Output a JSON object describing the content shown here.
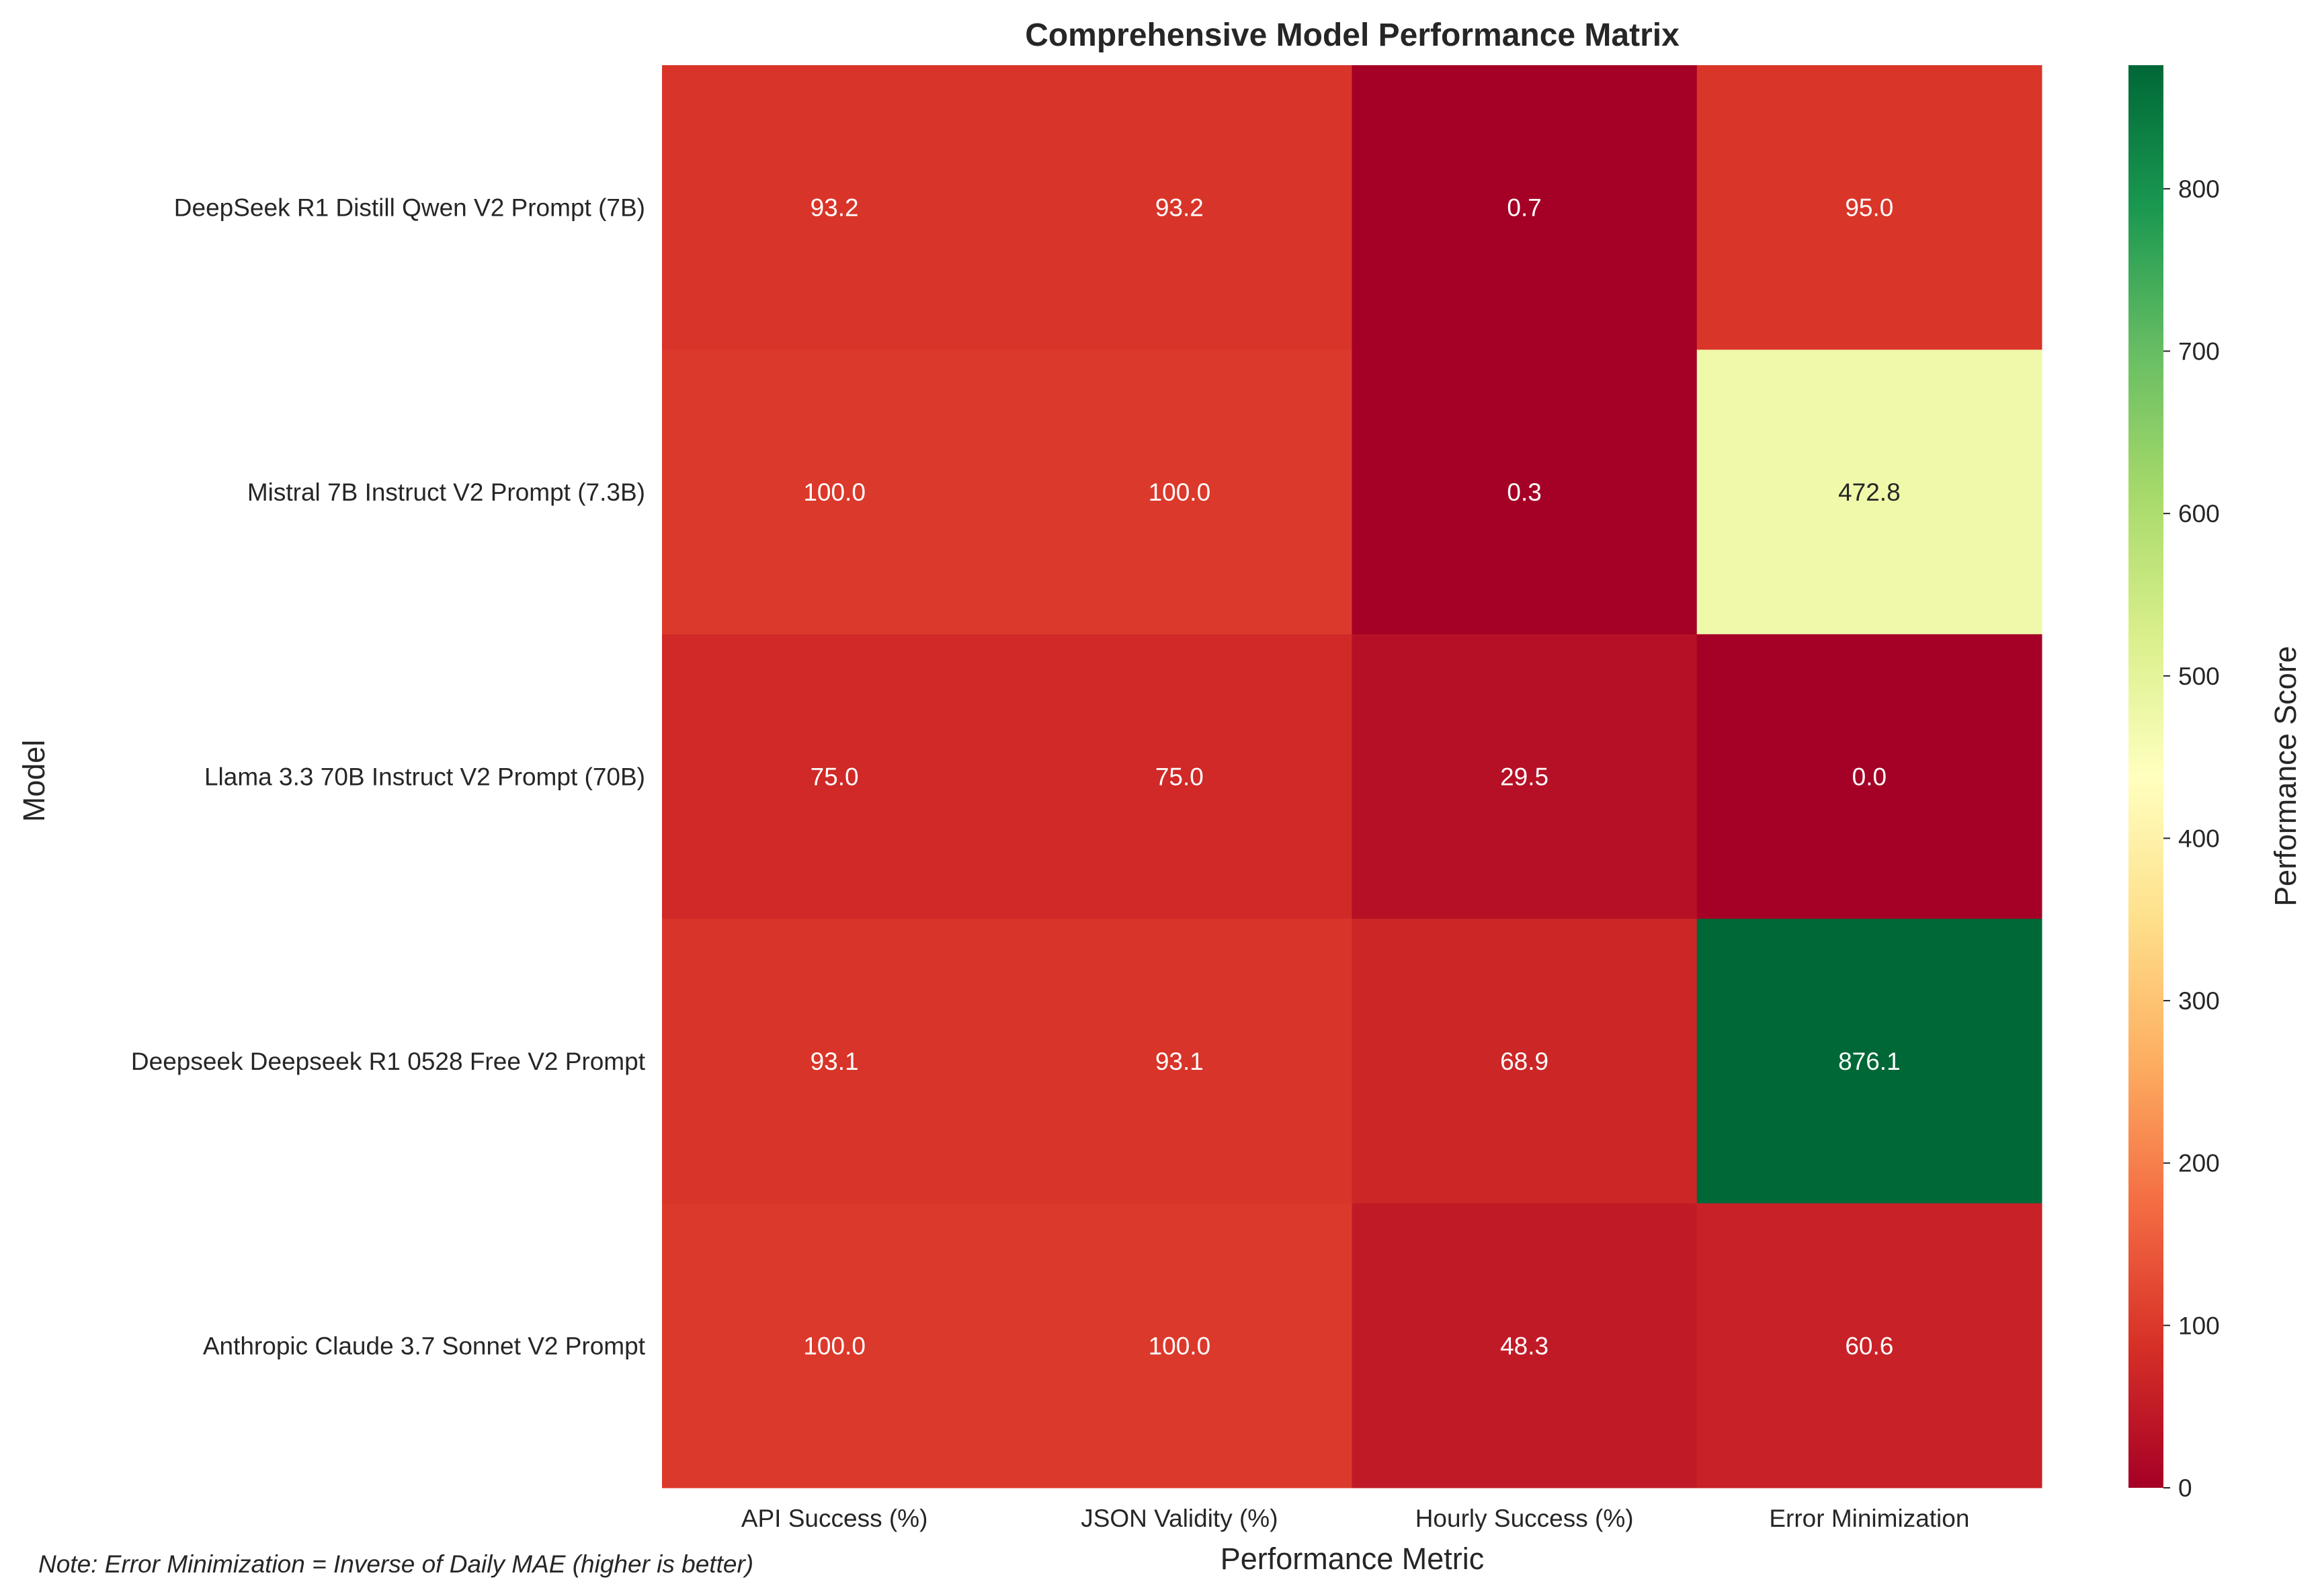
{
  "chart_data": {
    "type": "heatmap",
    "title": "Comprehensive Model Performance Matrix",
    "xlabel": "Performance Metric",
    "ylabel": "Model",
    "columns": [
      "API Success (%)",
      "JSON Validity (%)",
      "Hourly Success (%)",
      "Error Minimization"
    ],
    "rows": [
      "DeepSeek R1 Distill Qwen V2 Prompt (7B)",
      "Mistral 7B Instruct V2 Prompt (7.3B)",
      "Llama 3.3 70B Instruct V2 Prompt (70B)",
      "Deepseek Deepseek R1 0528 Free V2 Prompt",
      "Anthropic Claude 3.7 Sonnet V2 Prompt"
    ],
    "values": [
      [
        93.2,
        93.2,
        0.7,
        95.0
      ],
      [
        100.0,
        100.0,
        0.3,
        472.8
      ],
      [
        75.0,
        75.0,
        29.5,
        0.0
      ],
      [
        93.1,
        93.1,
        68.9,
        876.1
      ],
      [
        100.0,
        100.0,
        48.3,
        60.6
      ]
    ],
    "colorbar": {
      "label": "Performance Score",
      "range": [
        0,
        876.1
      ],
      "ticks": [
        0,
        100,
        200,
        300,
        400,
        500,
        600,
        700,
        800
      ],
      "colormap": "RdYlGn"
    },
    "note": "Note: Error Minimization = Inverse of Daily MAE (higher is better)"
  }
}
